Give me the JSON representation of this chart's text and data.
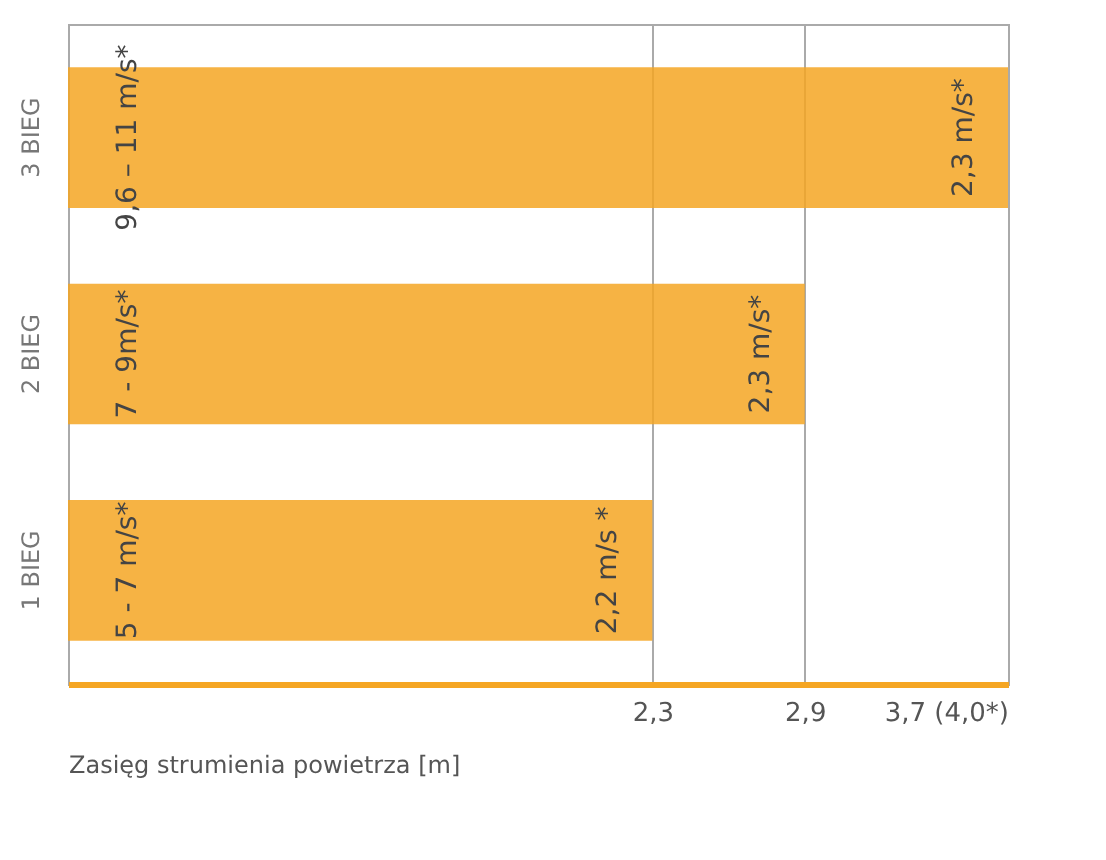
{
  "chart_data": {
    "type": "bar",
    "orientation": "horizontal",
    "xlabel": "Zasięg strumienia powietrza [m]",
    "categories": [
      "3 BIEG",
      "2 BIEG",
      "1 BIEG"
    ],
    "values": [
      3.7,
      2.9,
      2.3
    ],
    "color": "#f5a623",
    "xlim": [
      0,
      3.7
    ],
    "xticks": [
      {
        "value": 2.3,
        "label": "2,3"
      },
      {
        "value": 2.9,
        "label": "2,9"
      },
      {
        "value": 3.7,
        "label": "3,7 (4,0*)"
      }
    ],
    "grid": "x",
    "annotations": [
      "9,6 – 11 m/s*",
      "2,3 m/s*",
      "7 - 9m/s*",
      "2,3 m/s*",
      "5 - 7 m/s*",
      "2,2 m/s *"
    ]
  }
}
